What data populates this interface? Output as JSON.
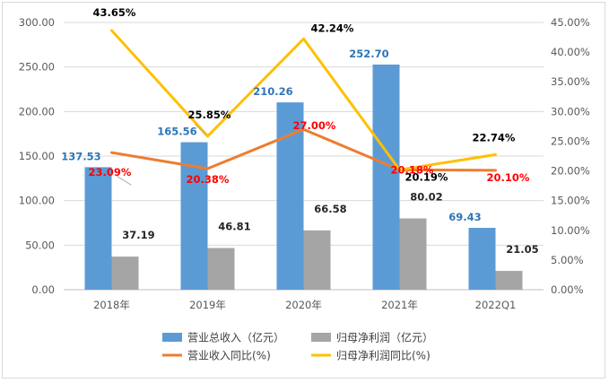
{
  "chart_data": {
    "type": "bar",
    "categories": [
      "2018年",
      "2019年",
      "2020年",
      "2021年",
      "2022Q1"
    ],
    "left_axis": {
      "ylim": [
        0,
        300
      ],
      "ticks": [
        "0.00",
        "50.00",
        "100.00",
        "150.00",
        "200.00",
        "250.00",
        "300.00"
      ]
    },
    "right_axis": {
      "ylim": [
        0,
        45
      ],
      "ticks": [
        "0.00%",
        "5.00%",
        "10.00%",
        "15.00%",
        "20.00%",
        "25.00%",
        "30.00%",
        "35.00%",
        "40.00%",
        "45.00%"
      ]
    },
    "series": [
      {
        "name": "营业总收入（亿元）",
        "kind": "bar",
        "axis": "left",
        "color": "#5B9BD5",
        "label_color": "#2E75B6",
        "values": [
          137.53,
          165.56,
          210.26,
          252.7,
          69.43
        ],
        "labels": [
          "137.53",
          "165.56",
          "210.26",
          "252.70",
          "69.43"
        ]
      },
      {
        "name": "归母净利润（亿元）",
        "kind": "bar",
        "axis": "left",
        "color": "#A5A5A5",
        "label_color": "#262626",
        "values": [
          37.19,
          46.81,
          66.58,
          80.02,
          21.05
        ],
        "labels": [
          "37.19",
          "46.81",
          "66.58",
          "80.02",
          "21.05"
        ]
      },
      {
        "name": "营业收入同比(%)",
        "kind": "line",
        "axis": "right",
        "color": "#ED7D31",
        "label_color": "#FF0000",
        "values": [
          23.09,
          20.38,
          27.0,
          20.18,
          20.1
        ],
        "labels": [
          "23.09%",
          "20.38%",
          "27.00%",
          "20.18%",
          "20.10%"
        ]
      },
      {
        "name": "归母净利润同比(%)",
        "kind": "line",
        "axis": "right",
        "color": "#FFC000",
        "label_color": "#000000",
        "values": [
          43.65,
          25.85,
          42.24,
          20.19,
          22.74
        ],
        "labels": [
          "43.65%",
          "25.85%",
          "42.24%",
          "20.19%",
          "22.74%"
        ]
      }
    ],
    "legend_position": "bottom"
  }
}
